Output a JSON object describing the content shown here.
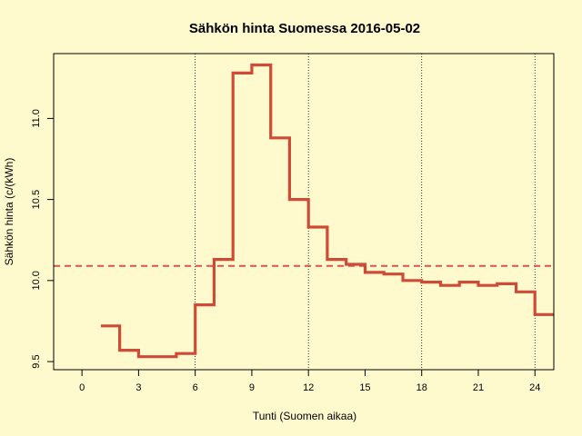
{
  "chart_data": {
    "type": "line",
    "step": true,
    "title": "Sähkön hinta Suomessa 2016-05-02",
    "xlabel": "Tunti (Suomen aikaa)",
    "ylabel": "Sähkön hinta (c/(kWh)",
    "xlim": [
      -1.5,
      25
    ],
    "ylim": [
      9.45,
      11.4
    ],
    "x_ticks": [
      0,
      3,
      6,
      9,
      12,
      15,
      18,
      21,
      24
    ],
    "y_ticks": [
      9.5,
      10.0,
      10.5,
      11.0
    ],
    "y_tick_labels": [
      "9.5",
      "10.0",
      "10.5",
      "11.0"
    ],
    "vertical_guides": [
      6,
      12,
      18,
      24
    ],
    "reference_line": 10.09,
    "series": [
      {
        "x": [
          1,
          2,
          3,
          4,
          5,
          6,
          7,
          8,
          9,
          10,
          11,
          12,
          13,
          14,
          15,
          16,
          17,
          18,
          19,
          20,
          21,
          22,
          23,
          24
        ],
        "values": [
          9.72,
          9.57,
          9.53,
          9.53,
          9.55,
          9.85,
          10.13,
          11.28,
          11.33,
          10.88,
          10.5,
          10.33,
          10.13,
          10.1,
          10.05,
          10.04,
          10.0,
          9.99,
          9.97,
          9.99,
          9.97,
          9.98,
          9.93,
          9.79
        ],
        "color": "#cd4b37"
      }
    ],
    "reference_color": "#d9534f",
    "grid": false
  }
}
